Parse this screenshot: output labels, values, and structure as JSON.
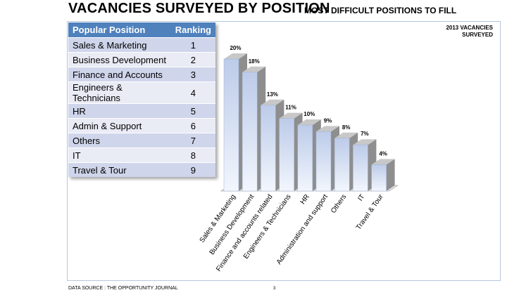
{
  "header": {
    "title": "VACANCIES SURVEYED BY POSITION",
    "subtitle": "MOST DIFFICULT POSITIONS TO FILL",
    "note": "2013  VACANCIES SURVEYED"
  },
  "table": {
    "headers": [
      "Popular Position",
      "Ranking"
    ],
    "rows": [
      {
        "position": "Sales  & Marketing",
        "rank": "1"
      },
      {
        "position": "Business Development",
        "rank": "2"
      },
      {
        "position": "Finance and Accounts",
        "rank": "3"
      },
      {
        "position": "Engineers & Technicians",
        "rank": "4"
      },
      {
        "position": "HR",
        "rank": "5"
      },
      {
        "position": "Admin & Support",
        "rank": "6"
      },
      {
        "position": "Others",
        "rank": "7"
      },
      {
        "position": "IT",
        "rank": "8"
      },
      {
        "position": "Travel & Tour",
        "rank": "9"
      }
    ]
  },
  "chart_data": {
    "type": "bar",
    "categories": [
      "Sales & Marketing",
      "Business Development",
      "Finance and accounts related",
      "Engineers & Technicians",
      "HR",
      "Administration and support",
      "Others",
      "IT",
      "Travel & Tour"
    ],
    "values": [
      20,
      18,
      13,
      11,
      10,
      9,
      8,
      7,
      4
    ],
    "value_labels": [
      "20%",
      "18%",
      "13%",
      "11%",
      "10%",
      "9%",
      "8%",
      "7%",
      "4%"
    ],
    "ylim": [
      0,
      20
    ],
    "grid": false,
    "style": "3d-column",
    "colors": {
      "front_top": "#bccbe9",
      "front_bottom": "#f2f6fd",
      "side": "#8e8e8e",
      "top": "#c8c8c8"
    }
  },
  "footer": {
    "source": "DATA SOURCE :  THE OPPORTUNITY JOURNAL",
    "page": "3"
  }
}
